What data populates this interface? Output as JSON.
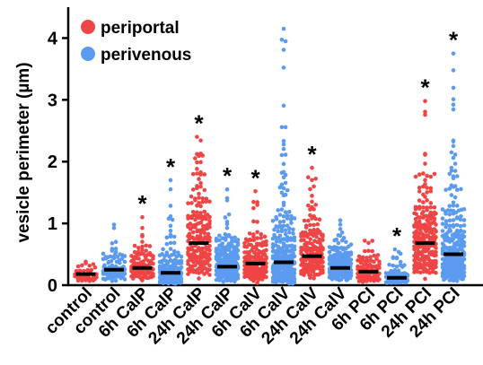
{
  "chart_data": {
    "type": "scatter",
    "subtype": "dot-strip plot with median bars",
    "ylabel": "vesicle perimeter (µm)",
    "ylim": [
      0,
      4.5
    ],
    "yticks": [
      0,
      1,
      2,
      3,
      4
    ],
    "grid": false,
    "legend_position": "top-left",
    "legend": [
      {
        "label": "periportal",
        "color": "#f04545"
      },
      {
        "label": "perivenous",
        "color": "#5b9bef"
      }
    ],
    "significance_marker": "*",
    "categories": [
      {
        "label": "control",
        "series": "periportal",
        "median": 0.18,
        "max": 0.38,
        "n": 40,
        "significant": false
      },
      {
        "label": "control",
        "series": "perivenous",
        "median": 0.25,
        "max": 0.98,
        "n": 120,
        "significant": false
      },
      {
        "label": "6h CalP",
        "series": "periportal",
        "median": 0.28,
        "max": 1.1,
        "n": 100,
        "significant": true
      },
      {
        "label": "6h CalP",
        "series": "perivenous",
        "median": 0.2,
        "max": 1.7,
        "n": 190,
        "significant": true
      },
      {
        "label": "24h CalP",
        "series": "periportal",
        "median": 0.68,
        "max": 2.4,
        "n": 200,
        "significant": true
      },
      {
        "label": "24h CalP",
        "series": "perivenous",
        "median": 0.3,
        "max": 1.55,
        "n": 260,
        "significant": true
      },
      {
        "label": "6h CalV",
        "series": "periportal",
        "median": 0.35,
        "max": 1.52,
        "n": 190,
        "significant": true
      },
      {
        "label": "6h CalV",
        "series": "perivenous",
        "median": 0.37,
        "max": 4.15,
        "n": 300,
        "significant": false
      },
      {
        "label": "24h CalV",
        "series": "periportal",
        "median": 0.47,
        "max": 1.9,
        "n": 190,
        "significant": true
      },
      {
        "label": "24h CalV",
        "series": "perivenous",
        "median": 0.28,
        "max": 1.05,
        "n": 220,
        "significant": false
      },
      {
        "label": "6h PCI",
        "series": "periportal",
        "median": 0.22,
        "max": 0.72,
        "n": 90,
        "significant": false
      },
      {
        "label": "6h PCI",
        "series": "perivenous",
        "median": 0.12,
        "max": 0.58,
        "n": 100,
        "significant": true
      },
      {
        "label": "24h PCI",
        "series": "periportal",
        "median": 0.68,
        "max": 2.98,
        "n": 230,
        "significant": true
      },
      {
        "label": "24h PCI",
        "series": "perivenous",
        "median": 0.5,
        "max": 3.75,
        "n": 280,
        "significant": true
      }
    ]
  }
}
